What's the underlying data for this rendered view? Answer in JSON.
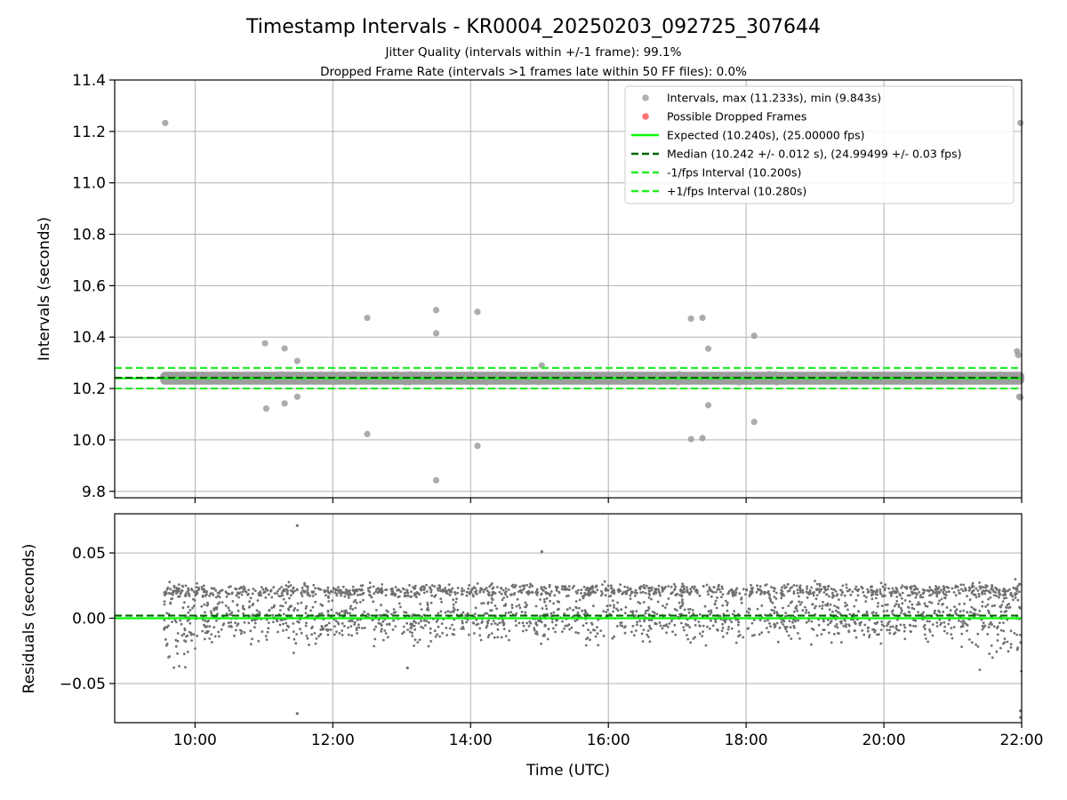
{
  "colors": {
    "point": "#9e9e9e",
    "dropped": "#ff5050",
    "expected": "#00ff00",
    "median": "#006400",
    "band": "#22ee22",
    "residual_point": "#707070",
    "grid": "#b0b0b0"
  },
  "chart_data": [
    {
      "type": "scatter",
      "title": "Timestamp Intervals - KR0004_20250203_092725_307644",
      "subtitle_1": "Jitter Quality (intervals within +/-1 frame): 99.1%",
      "subtitle_2": "Dropped Frame Rate (intervals >1 frames late within 50 FF files): 0.0%",
      "ylabel": "Intervals (seconds)",
      "xlabel": "",
      "xlim": [
        "08:50",
        "22:00"
      ],
      "ylim": [
        9.775,
        11.4
      ],
      "yticks": [
        9.8,
        10.0,
        10.2,
        10.4,
        10.6,
        10.8,
        11.0,
        11.2,
        11.4
      ],
      "ytick_labels": [
        "9.8",
        "10.0",
        "10.2",
        "10.4",
        "10.6",
        "10.8",
        "11.0",
        "11.2",
        "11.4"
      ],
      "grid": true,
      "legend_position": "top-right",
      "legend": [
        {
          "label": "Intervals, max (11.233s), min (9.843s)",
          "kind": "marker",
          "color": "#9e9e9e"
        },
        {
          "label": "Possible Dropped Frames",
          "kind": "marker",
          "color": "#ff5050"
        },
        {
          "label": "Expected (10.240s), (25.00000 fps)",
          "kind": "solid",
          "color": "#00ff00"
        },
        {
          "label": "Median (10.242 +/- 0.012 s), (24.99499 +/- 0.03 fps)",
          "kind": "dashed",
          "color": "#006400"
        },
        {
          "label": "-1/fps Interval (10.200s)",
          "kind": "dashed",
          "color": "#22ee22"
        },
        {
          "label": "+1/fps Interval (10.280s)",
          "kind": "dashed",
          "color": "#22ee22"
        }
      ],
      "reference_lines": [
        {
          "name": "Expected",
          "y": 10.24,
          "style": "solid",
          "color": "#00ff00"
        },
        {
          "name": "Median",
          "y": 10.242,
          "style": "dashed",
          "color": "#006400"
        },
        {
          "name": "-1/fps Interval",
          "y": 10.2,
          "style": "dashed",
          "color": "#22ee22"
        },
        {
          "name": "+1/fps Interval",
          "y": 10.28,
          "style": "dashed",
          "color": "#22ee22"
        }
      ],
      "dense_band": {
        "x_start": "09:32",
        "x_end": "22:00",
        "y_low": 10.215,
        "y_high": 10.265
      },
      "series": [
        {
          "name": "Intervals, max (11.233s), min (9.843s)",
          "points": [
            {
              "x": "09:34",
              "y": 11.233
            },
            {
              "x": "11:01",
              "y": 10.376
            },
            {
              "x": "11:02",
              "y": 10.122
            },
            {
              "x": "11:18",
              "y": 10.356
            },
            {
              "x": "11:18",
              "y": 10.142
            },
            {
              "x": "11:29",
              "y": 10.307
            },
            {
              "x": "11:29",
              "y": 10.168
            },
            {
              "x": "12:30",
              "y": 10.475
            },
            {
              "x": "12:30",
              "y": 10.023
            },
            {
              "x": "13:30",
              "y": 10.505
            },
            {
              "x": "13:30",
              "y": 10.415
            },
            {
              "x": "13:30",
              "y": 9.843
            },
            {
              "x": "14:06",
              "y": 10.498
            },
            {
              "x": "14:06",
              "y": 9.977
            },
            {
              "x": "15:02",
              "y": 10.29
            },
            {
              "x": "17:12",
              "y": 10.472
            },
            {
              "x": "17:12",
              "y": 10.003
            },
            {
              "x": "17:22",
              "y": 10.475
            },
            {
              "x": "17:22",
              "y": 10.007
            },
            {
              "x": "17:27",
              "y": 10.355
            },
            {
              "x": "17:27",
              "y": 10.135
            },
            {
              "x": "18:07",
              "y": 10.405
            },
            {
              "x": "18:07",
              "y": 10.07
            },
            {
              "x": "21:56",
              "y": 10.345
            },
            {
              "x": "21:57",
              "y": 10.33
            },
            {
              "x": "21:58",
              "y": 10.168
            },
            {
              "x": "21:59",
              "y": 11.233
            },
            {
              "x": "21:59",
              "y": 10.165
            }
          ]
        },
        {
          "name": "Possible Dropped Frames",
          "points": []
        }
      ]
    },
    {
      "type": "scatter",
      "title": "",
      "ylabel": "Residuals (seconds)",
      "xlabel": "Time (UTC)",
      "xlim": [
        "08:50",
        "22:00"
      ],
      "xticks": [
        "10:00",
        "12:00",
        "14:00",
        "16:00",
        "18:00",
        "20:00",
        "22:00"
      ],
      "ylim": [
        -0.08,
        0.08
      ],
      "yticks": [
        -0.05,
        0.0,
        0.05
      ],
      "ytick_labels": [
        "−0.05",
        "0.00",
        "0.05"
      ],
      "grid": true,
      "reference_lines": [
        {
          "name": "Expected",
          "y": 0.0,
          "style": "solid",
          "color": "#00ff00"
        },
        {
          "name": "Median",
          "y": 0.002,
          "style": "dashed",
          "color": "#006400"
        }
      ],
      "clusters": [
        {
          "y_center": 0.0,
          "spread": 0.009
        },
        {
          "y_center": 0.021,
          "spread": 0.0025
        }
      ],
      "points": [
        {
          "x": "11:29",
          "y": 0.071
        },
        {
          "x": "11:29",
          "y": -0.073
        },
        {
          "x": "13:05",
          "y": -0.038
        },
        {
          "x": "15:02",
          "y": 0.051
        },
        {
          "x": "21:59",
          "y": -0.071
        },
        {
          "x": "21:59",
          "y": -0.076
        }
      ]
    }
  ]
}
